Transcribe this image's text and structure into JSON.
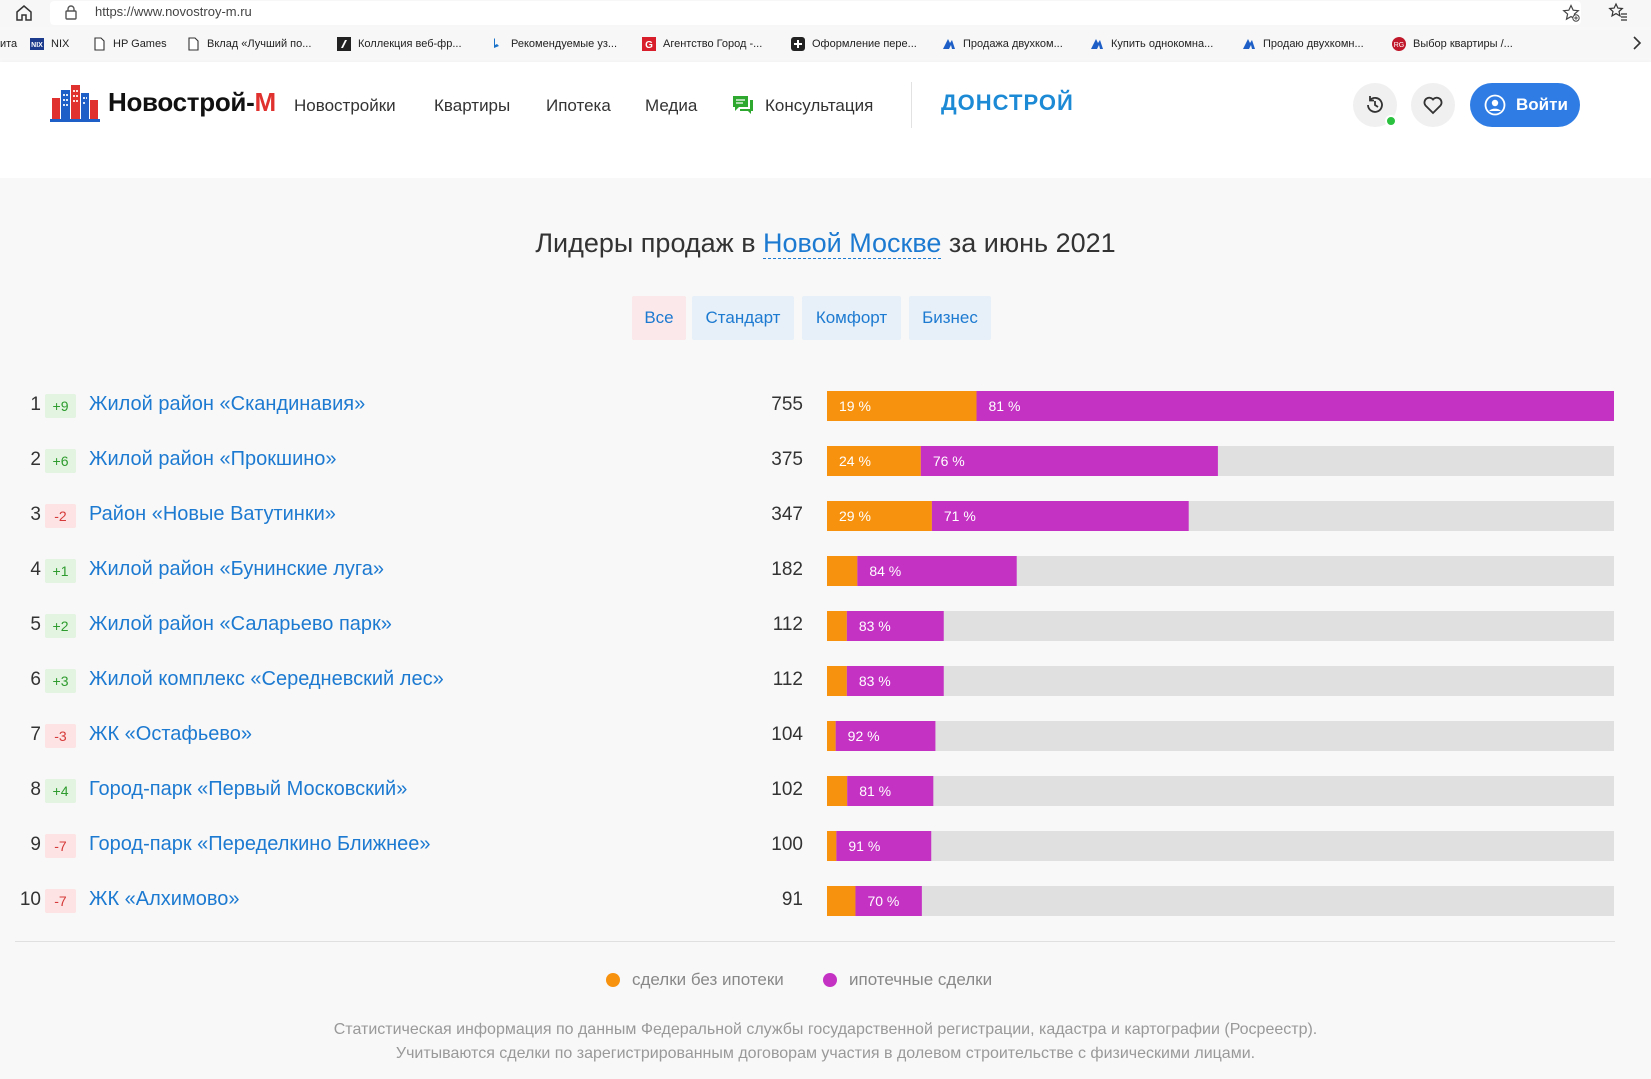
{
  "browser": {
    "url": "https://www.novostroy-m.ru",
    "bookmarks": [
      {
        "label": "ита",
        "icon": "none"
      },
      {
        "label": "NIX",
        "icon": "nix-icon"
      },
      {
        "label": "HP Games",
        "icon": "page-icon"
      },
      {
        "label": "Вклад «Лучший по...",
        "icon": "page-icon"
      },
      {
        "label": "Коллекция веб-фр...",
        "icon": "collection-icon"
      },
      {
        "label": "Рекомендуемые уз...",
        "icon": "bing-icon"
      },
      {
        "label": "Агентство Город -...",
        "icon": "g-icon"
      },
      {
        "label": "Оформление пере...",
        "icon": "plus-icon"
      },
      {
        "label": "Продажа двухком...",
        "icon": "realty-icon"
      },
      {
        "label": "Купить однокомна...",
        "icon": "realty-icon"
      },
      {
        "label": "Продаю двухкомн...",
        "icon": "realty-icon"
      },
      {
        "label": "Выбор квартиры /...",
        "icon": "red-circle-icon"
      }
    ]
  },
  "header": {
    "logo_main": "Новострой-",
    "logo_accent": "М",
    "nav": [
      "Новостройки",
      "Квартиры",
      "Ипотека",
      "Медиа",
      "Консультация"
    ],
    "brand": "ДОНСТРОЙ",
    "login": "Войти"
  },
  "section": {
    "title_before": "Лидеры продаж в ",
    "title_link": "Новой Москве",
    "title_after": " за июнь 2021",
    "tabs": [
      "Все",
      "Стандарт",
      "Комфорт",
      "Бизнес"
    ],
    "active_tab": "Все"
  },
  "chart_data": {
    "type": "bar",
    "orientation": "horizontal",
    "stacked": true,
    "max_value": 755,
    "series": [
      {
        "name": "сделки без ипотеки",
        "color": "#f7920e"
      },
      {
        "name": "ипотечные сделки",
        "color": "#c432c4"
      }
    ],
    "rows": [
      {
        "rank": "1",
        "change": "+9",
        "name": "Жилой район «Скандинавия»",
        "total": 755,
        "no_mortgage_pct": 19,
        "mortgage_pct": 81,
        "no_mortgage_label": "19 %",
        "mortgage_label": "81 %"
      },
      {
        "rank": "2",
        "change": "+6",
        "name": "Жилой район «Прокшино»",
        "total": 375,
        "no_mortgage_pct": 24,
        "mortgage_pct": 76,
        "no_mortgage_label": "24 %",
        "mortgage_label": "76 %"
      },
      {
        "rank": "3",
        "change": "-2",
        "name": "Район «Новые Ватутинки»",
        "total": 347,
        "no_mortgage_pct": 29,
        "mortgage_pct": 71,
        "no_mortgage_label": "29 %",
        "mortgage_label": "71 %"
      },
      {
        "rank": "4",
        "change": "+1",
        "name": "Жилой район «Бунинские луга»",
        "total": 182,
        "no_mortgage_pct": 16,
        "mortgage_pct": 84,
        "no_mortgage_label": "",
        "mortgage_label": "84 %"
      },
      {
        "rank": "5",
        "change": "+2",
        "name": "Жилой район «Саларьево парк»",
        "total": 112,
        "no_mortgage_pct": 17,
        "mortgage_pct": 83,
        "no_mortgage_label": "",
        "mortgage_label": "83 %"
      },
      {
        "rank": "6",
        "change": "+3",
        "name": "Жилой комплекс «Середневский лес»",
        "total": 112,
        "no_mortgage_pct": 17,
        "mortgage_pct": 83,
        "no_mortgage_label": "",
        "mortgage_label": "83 %"
      },
      {
        "rank": "7",
        "change": "-3",
        "name": "ЖК «Остафьево»",
        "total": 104,
        "no_mortgage_pct": 8,
        "mortgage_pct": 92,
        "no_mortgage_label": "",
        "mortgage_label": "92 %"
      },
      {
        "rank": "8",
        "change": "+4",
        "name": "Город-парк «Первый Московский»",
        "total": 102,
        "no_mortgage_pct": 19,
        "mortgage_pct": 81,
        "no_mortgage_label": "",
        "mortgage_label": "81 %"
      },
      {
        "rank": "9",
        "change": "-7",
        "name": "Город-парк «Переделкино Ближнее»",
        "total": 100,
        "no_mortgage_pct": 9,
        "mortgage_pct": 91,
        "no_mortgage_label": "",
        "mortgage_label": "91 %"
      },
      {
        "rank": "10",
        "change": "-7",
        "name": "ЖК «Алхимово»",
        "total": 91,
        "no_mortgage_pct": 30,
        "mortgage_pct": 70,
        "no_mortgage_label": "",
        "mortgage_label": "70 %"
      }
    ],
    "legend_placement": "bottom-center"
  },
  "legend": {
    "no_mortgage": "сделки без ипотеки",
    "mortgage": "ипотечные сделки"
  },
  "footnote": {
    "line1": "Статистическая информация по данным Федеральной службы государственной регистрации, кадастра и картографии (Росреестр).",
    "line2": "Учитываются сделки по зарегистрированным договорам участия в долевом строительстве с физическими лицами."
  },
  "colors": {
    "link": "#1d7ad1",
    "no_mortgage": "#f7920e",
    "mortgage": "#c432c4",
    "track": "#e0e0e0",
    "login_button": "#2f7de4",
    "online": "#29c13e"
  }
}
